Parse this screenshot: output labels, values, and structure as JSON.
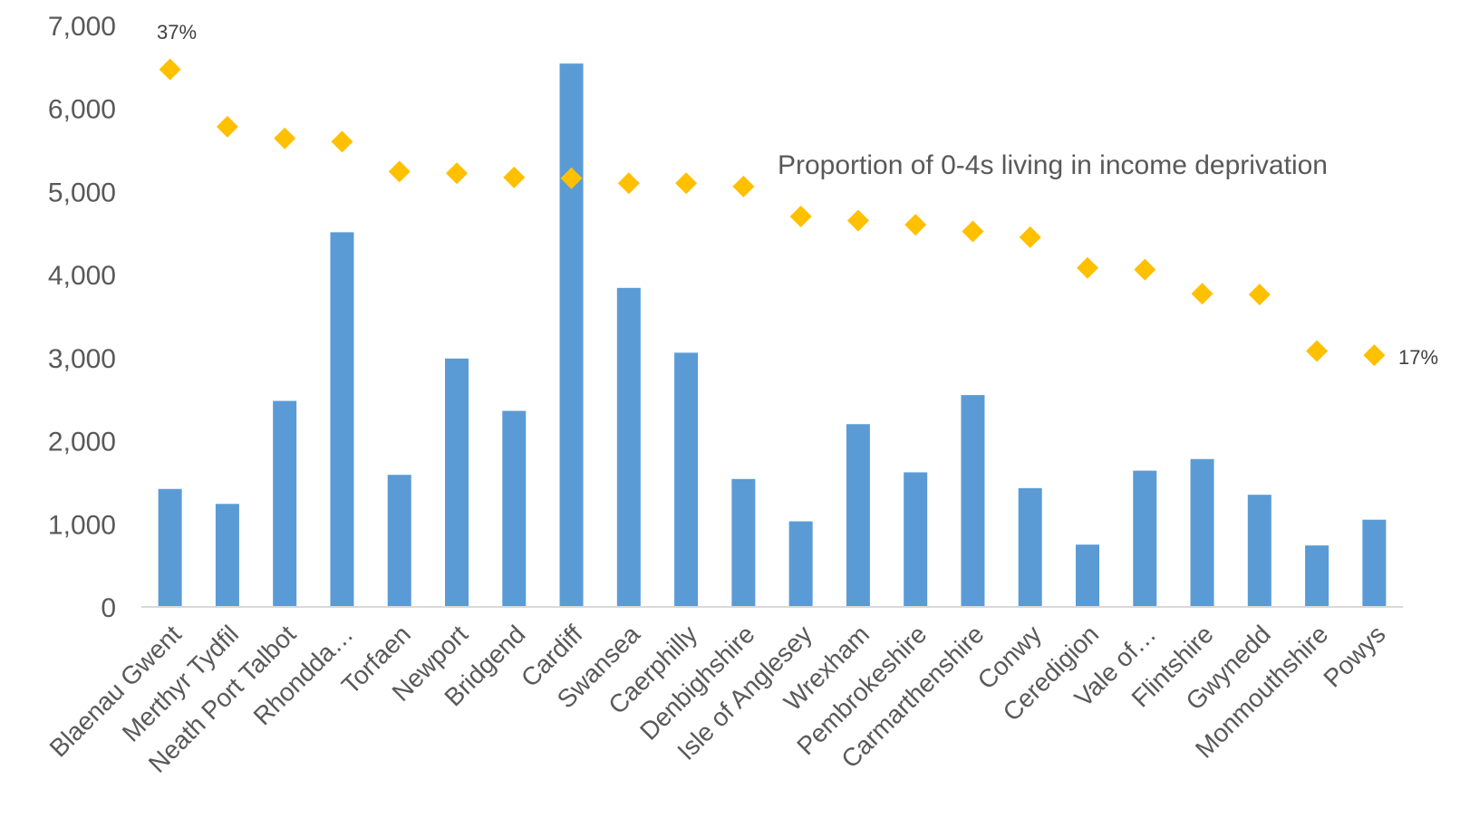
{
  "chart_data": {
    "type": "bar",
    "categories": [
      "Blaenau Gwent",
      "Merthyr Tydfil",
      "Neath Port Talbot",
      "Rhondda…",
      "Torfaen",
      "Newport",
      "Bridgend",
      "Cardiff",
      "Swansea",
      "Caerphilly",
      "Denbighshire",
      "Isle of Anglesey",
      "Wrexham",
      "Pembrokeshire",
      "Carmarthenshire",
      "Conwy",
      "Ceredigion",
      "Vale of…",
      "Flintshire",
      "Gwynedd",
      "Monmouthshire",
      "Powys"
    ],
    "series": [
      {
        "type": "bar",
        "color": "#5b9bd5",
        "values": [
          1420,
          1240,
          2480,
          4510,
          1590,
          2990,
          2360,
          6540,
          3840,
          3060,
          1540,
          1030,
          2200,
          1620,
          2550,
          1430,
          750,
          1640,
          1780,
          1350,
          740,
          1050
        ]
      },
      {
        "name": "Proportion of 0-4s living in income deprivation",
        "type": "scatter",
        "marker": "diamond",
        "color": "#ffc000",
        "values": [
          6470,
          5780,
          5640,
          5600,
          5240,
          5220,
          5170,
          5160,
          5100,
          5100,
          5060,
          4700,
          4650,
          4600,
          4520,
          4450,
          4080,
          4060,
          3770,
          3760,
          3080,
          3030
        ]
      }
    ],
    "data_labels": {
      "first": "37%",
      "last": "17%"
    },
    "yticks": [
      "0",
      "1,000",
      "2,000",
      "3,000",
      "4,000",
      "5,000",
      "6,000",
      "7,000"
    ],
    "ylim": [
      0,
      7000
    ],
    "grid": false,
    "legend": "none"
  }
}
